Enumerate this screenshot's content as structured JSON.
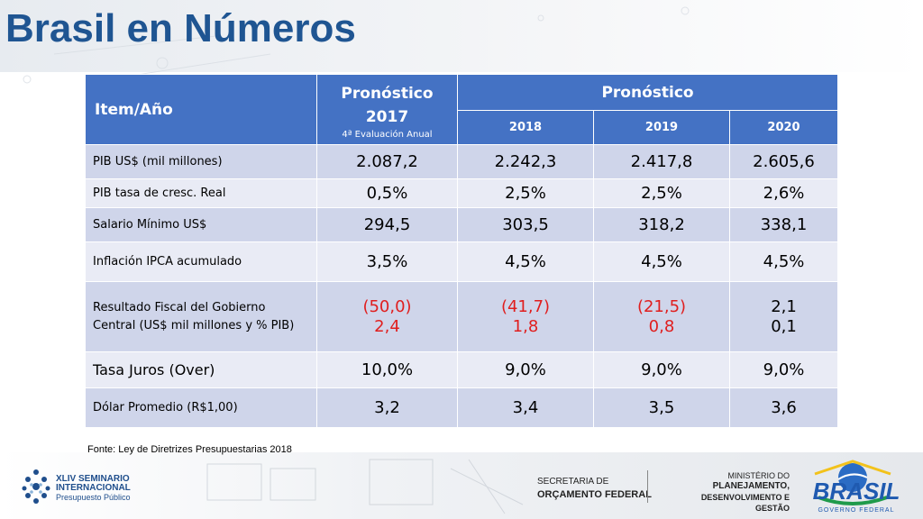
{
  "title": "Brasil en Números",
  "table": {
    "header": {
      "item": "Item/Año",
      "col2017_title": "Pronóstico 2017",
      "col2017_sub": "4ª Evaluación Anual",
      "group": "Pronóstico",
      "years": [
        "2018",
        "2019",
        "2020"
      ]
    },
    "rows": [
      {
        "label": "PIB US$ (mil millones)",
        "values": [
          "2.087,2",
          "2.242,3",
          "2.417,8",
          "2.605,6"
        ]
      },
      {
        "label": "PIB tasa de cresc. Real",
        "values": [
          "0,5%",
          "2,5%",
          "2,5%",
          "2,6%"
        ]
      },
      {
        "label": "Salario Mínimo US$",
        "values": [
          "294,5",
          "303,5",
          "318,2",
          "338,1"
        ]
      },
      {
        "label": "Inflación IPCA acumulado",
        "values": [
          "3,5%",
          "4,5%",
          "4,5%",
          "4,5%"
        ]
      },
      {
        "label": "Resultado Fiscal del Gobierno Central (US$ mil millones y % PIB)",
        "values": [
          [
            "(50,0)",
            "2,4"
          ],
          [
            "(41,7)",
            "1,8"
          ],
          [
            "(21,5)",
            "0,8"
          ],
          [
            "2,1",
            "0,1"
          ]
        ]
      },
      {
        "label": "Tasa Juros (Over)",
        "values": [
          "10,0%",
          "9,0%",
          "9,0%",
          "9,0%"
        ]
      },
      {
        "label": "Dólar Promedio (R$1,00)",
        "values": [
          "3,2",
          "3,4",
          "3,5",
          "3,6"
        ]
      }
    ]
  },
  "source": "Fonte: Ley de Diretrizes Presupuestarias 2018",
  "footer": {
    "seminar_line1": "XLIV SEMINARIO",
    "seminar_line2": "INTERNACIONAL",
    "seminar_line3": "Presupuesto Público",
    "secretaria_line1": "SECRETARIA DE",
    "secretaria_line2": "ORÇAMENTO FEDERAL",
    "ministerio_line1": "MINISTÉRIO DO",
    "ministerio_line2": "PLANEJAMENTO,",
    "ministerio_line3": "DESENVOLVIMENTO E GESTÃO",
    "brasil_logo": "BRASIL",
    "brasil_tagline": "GOVERNO FEDERAL"
  },
  "colors": {
    "title": "#1f5592",
    "header": "#4472c4",
    "row_dark": "#cfd5ea",
    "row_light": "#e9ebf5",
    "negative": "#e01e1e"
  }
}
